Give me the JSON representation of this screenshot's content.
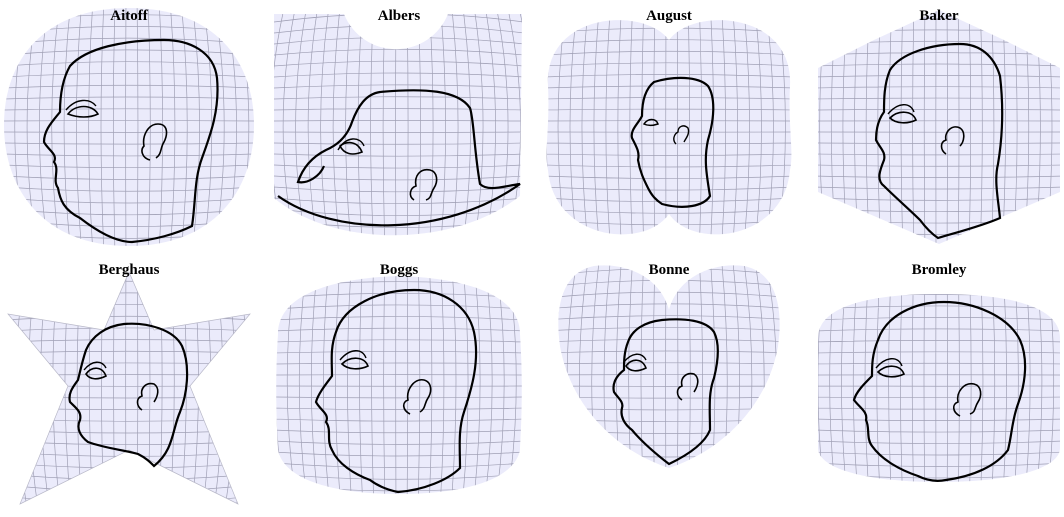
{
  "gallery": {
    "colors": {
      "background": "#ffffff",
      "sphere_fill": "#ebebfb",
      "graticule": "#9f9fb4",
      "outline": "#000000"
    },
    "panels": [
      {
        "title": "Aitoff"
      },
      {
        "title": "Albers"
      },
      {
        "title": "August"
      },
      {
        "title": "Baker"
      },
      {
        "title": "Berghaus"
      },
      {
        "title": "Boggs"
      },
      {
        "title": "Bonne"
      },
      {
        "title": "Bromley"
      }
    ]
  }
}
